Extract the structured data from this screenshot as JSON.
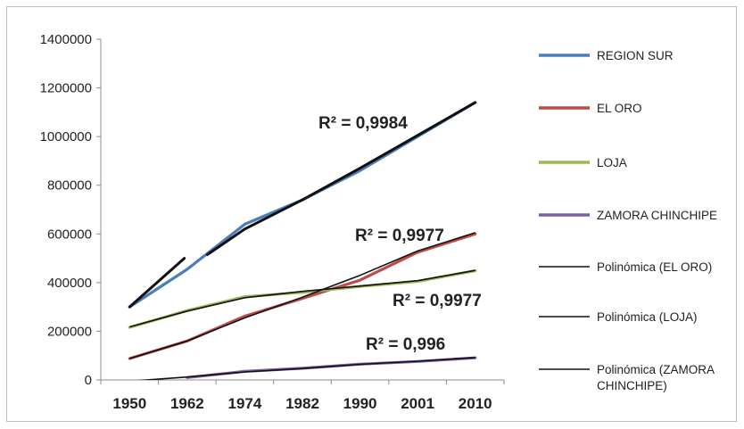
{
  "chart_data": {
    "type": "line",
    "categories": [
      "1950",
      "1962",
      "1974",
      "1982",
      "1990",
      "2001",
      "2010"
    ],
    "ylim": [
      0,
      1400000
    ],
    "yticks": [
      0,
      200000,
      400000,
      600000,
      800000,
      1000000,
      1200000,
      1400000
    ],
    "grid": false,
    "legend_position": "right",
    "series": [
      {
        "name": "REGION SUR",
        "color": "#4a7ebb",
        "values": [
          300000,
          455000,
          640000,
          740000,
          860000,
          1000000,
          1140000
        ]
      },
      {
        "name": "EL ORO",
        "color": "#be4b48",
        "values": [
          88000,
          160000,
          262000,
          335000,
          410000,
          525000,
          600000
        ]
      },
      {
        "name": "LOJA",
        "color": "#98b954",
        "values": [
          216000,
          285000,
          342000,
          360000,
          384000,
          405000,
          449000
        ]
      },
      {
        "name": "ZAMORA CHINCHIPE",
        "color": "#7d60a0",
        "values": [
          null,
          10000,
          35000,
          48000,
          65000,
          76000,
          91000
        ]
      }
    ],
    "trendlines": [
      {
        "name": "Polinómica (EL ORO)",
        "color": "#111111",
        "values": [
          88000,
          160000,
          255000,
          340000,
          430000,
          530000,
          605000
        ]
      },
      {
        "name": "Polinómica (LOJA)",
        "color": "#111111",
        "values": [
          218000,
          283000,
          338000,
          364000,
          386000,
          408000,
          450000
        ]
      },
      {
        "name": "Polinómica (ZAMORA CHINCHIPE)",
        "color": "#111111",
        "values": [
          -5000,
          12000,
          33000,
          47000,
          64000,
          77000,
          92000
        ]
      }
    ],
    "annotations": [
      "R² = 0,9984",
      "R² = 0,9977",
      "R² = 0,9977",
      "R² = 0,996"
    ]
  }
}
